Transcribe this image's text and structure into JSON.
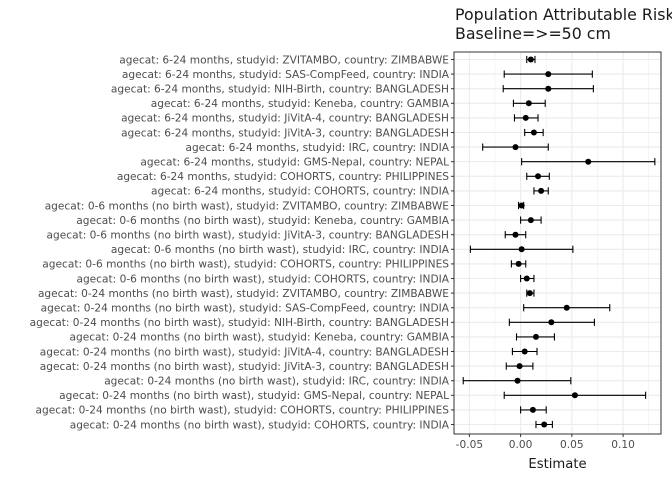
{
  "chart_data": {
    "type": "forest",
    "title": "Population Attributable Risk",
    "subtitle": "Baseline=>=50 cm",
    "xlabel": "Estimate",
    "ylabel": "",
    "xlim": [
      -0.065,
      0.137
    ],
    "xticks": [
      -0.05,
      0.0,
      0.05,
      0.1
    ],
    "xtick_labels": [
      "-0.05",
      "0.00",
      "0.05",
      "0.10"
    ],
    "grid": true,
    "colors": {
      "point": "#000000",
      "errorbar": "#000000",
      "grid": "#ebebeb",
      "panel_border": "#333333"
    },
    "rows": [
      {
        "label": "agecat: 6-24 months, studyid: ZVITAMBO, country: ZIMBABWE",
        "estimate": 0.01,
        "lower": 0.006,
        "upper": 0.014
      },
      {
        "label": "agecat: 6-24 months, studyid: SAS-CompFeed, country: INDIA",
        "estimate": 0.027,
        "lower": -0.016,
        "upper": 0.07
      },
      {
        "label": "agecat: 6-24 months, studyid: NIH-Birth, country: BANGLADESH",
        "estimate": 0.027,
        "lower": -0.017,
        "upper": 0.071
      },
      {
        "label": "agecat: 6-24 months, studyid: Keneba, country: GAMBIA",
        "estimate": 0.008,
        "lower": -0.007,
        "upper": 0.024
      },
      {
        "label": "agecat: 6-24 months, studyid: JiVitA-4, country: BANGLADESH",
        "estimate": 0.005,
        "lower": -0.006,
        "upper": 0.017
      },
      {
        "label": "agecat: 6-24 months, studyid: JiVitA-3, country: BANGLADESH",
        "estimate": 0.013,
        "lower": 0.004,
        "upper": 0.022
      },
      {
        "label": "agecat: 6-24 months, studyid: IRC, country: INDIA",
        "estimate": -0.005,
        "lower": -0.037,
        "upper": 0.027
      },
      {
        "label": "agecat: 6-24 months, studyid: GMS-Nepal, country: NEPAL",
        "estimate": 0.066,
        "lower": 0.001,
        "upper": 0.131
      },
      {
        "label": "agecat: 6-24 months, studyid: COHORTS, country: PHILIPPINES",
        "estimate": 0.017,
        "lower": 0.006,
        "upper": 0.028
      },
      {
        "label": "agecat: 6-24 months, studyid: COHORTS, country: INDIA",
        "estimate": 0.02,
        "lower": 0.013,
        "upper": 0.027
      },
      {
        "label": "agecat: 0-6 months (no birth wast), studyid: ZVITAMBO, country: ZIMBABWE",
        "estimate": 0.001,
        "lower": -0.002,
        "upper": 0.003
      },
      {
        "label": "agecat: 0-6 months (no birth wast), studyid: Keneba, country: GAMBIA",
        "estimate": 0.01,
        "lower": 0.0,
        "upper": 0.02
      },
      {
        "label": "agecat: 0-6 months (no birth wast), studyid: JiVitA-3, country: BANGLADESH",
        "estimate": -0.005,
        "lower": -0.015,
        "upper": 0.005
      },
      {
        "label": "agecat: 0-6 months (no birth wast), studyid: IRC, country: INDIA",
        "estimate": 0.001,
        "lower": -0.049,
        "upper": 0.051
      },
      {
        "label": "agecat: 0-6 months (no birth wast), studyid: COHORTS, country: PHILIPPINES",
        "estimate": -0.002,
        "lower": -0.009,
        "upper": 0.005
      },
      {
        "label": "agecat: 0-6 months (no birth wast), studyid: COHORTS, country: INDIA",
        "estimate": 0.006,
        "lower": 0.0,
        "upper": 0.013
      },
      {
        "label": "agecat: 0-24 months (no birth wast), studyid: ZVITAMBO, country: ZIMBABWE",
        "estimate": 0.009,
        "lower": 0.006,
        "upper": 0.013
      },
      {
        "label": "agecat: 0-24 months (no birth wast), studyid: SAS-CompFeed, country: INDIA",
        "estimate": 0.045,
        "lower": 0.003,
        "upper": 0.087
      },
      {
        "label": "agecat: 0-24 months (no birth wast), studyid: NIH-Birth, country: BANGLADESH",
        "estimate": 0.03,
        "lower": -0.011,
        "upper": 0.072
      },
      {
        "label": "agecat: 0-24 months (no birth wast), studyid: Keneba, country: GAMBIA",
        "estimate": 0.015,
        "lower": -0.004,
        "upper": 0.033
      },
      {
        "label": "agecat: 0-24 months (no birth wast), studyid: JiVitA-4, country: BANGLADESH",
        "estimate": 0.004,
        "lower": -0.008,
        "upper": 0.016
      },
      {
        "label": "agecat: 0-24 months (no birth wast), studyid: JiVitA-3, country: BANGLADESH",
        "estimate": -0.001,
        "lower": -0.014,
        "upper": 0.012
      },
      {
        "label": "agecat: 0-24 months (no birth wast), studyid: IRC, country: INDIA",
        "estimate": -0.003,
        "lower": -0.056,
        "upper": 0.049
      },
      {
        "label": "agecat: 0-24 months (no birth wast), studyid: GMS-Nepal, country: NEPAL",
        "estimate": 0.053,
        "lower": -0.016,
        "upper": 0.122
      },
      {
        "label": "agecat: 0-24 months (no birth wast), studyid: COHORTS, country: PHILIPPINES",
        "estimate": 0.012,
        "lower": 0.0,
        "upper": 0.025
      },
      {
        "label": "agecat: 0-24 months (no birth wast), studyid: COHORTS, country: INDIA",
        "estimate": 0.023,
        "lower": 0.015,
        "upper": 0.031
      }
    ]
  }
}
